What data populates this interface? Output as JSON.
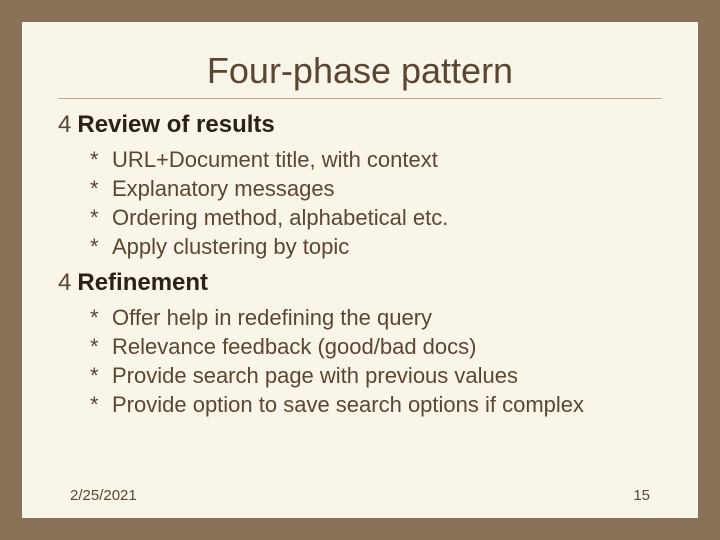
{
  "slide": {
    "title": "Four-phase pattern",
    "title_color": "#5a4632",
    "title_fontsize": 36,
    "background_color": "#faf5e9",
    "frame_color": "#8a7258",
    "hr_color": "#b8a890",
    "sections": [
      {
        "bullet": "4",
        "heading": "Review of results",
        "heading_color": "#2a2218",
        "heading_fontsize": 24,
        "items": [
          "URL+Document title, with context",
          "Explanatory messages",
          "Ordering method, alphabetical etc.",
          "Apply clustering by topic"
        ],
        "item_bullet": "*",
        "item_color": "#5a4632",
        "item_fontsize": 22
      },
      {
        "bullet": "4",
        "heading": "Refinement",
        "heading_color": "#2a2218",
        "heading_fontsize": 24,
        "items": [
          "Offer help in redefining the query",
          "Relevance feedback (good/bad docs)",
          "Provide search page with previous values",
          "Provide option to save search options if complex"
        ],
        "item_bullet": "*",
        "item_color": "#5a4632",
        "item_fontsize": 22
      }
    ],
    "footer": {
      "date": "2/25/2021",
      "page": "15",
      "color": "#5a4632",
      "fontsize": 15
    }
  }
}
